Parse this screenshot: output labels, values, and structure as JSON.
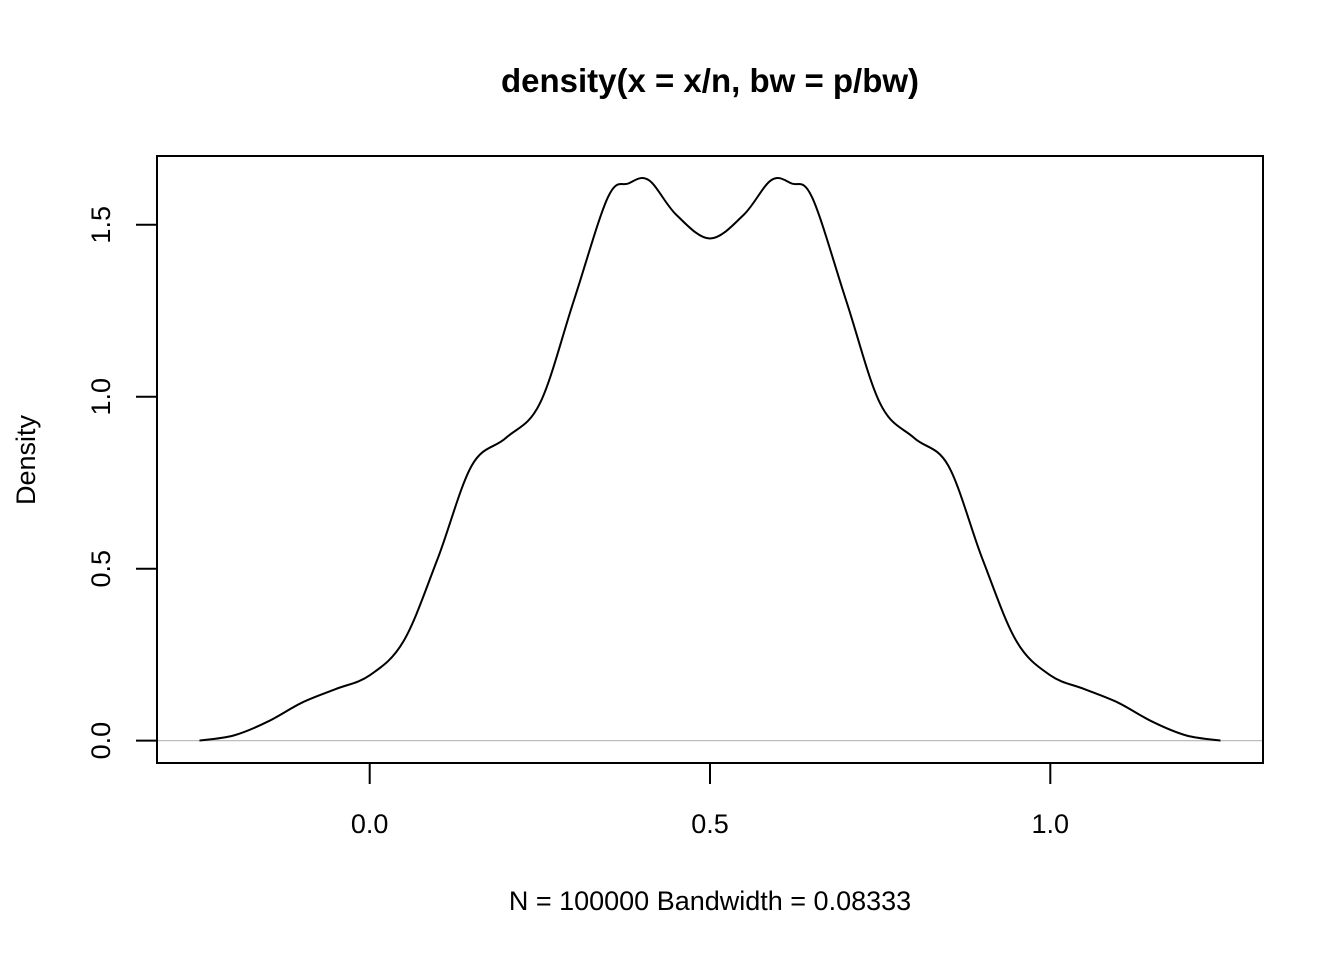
{
  "chart_data": {
    "type": "line",
    "title": "density(x = x/n, bw = p/bw)",
    "xlabel": "N = 100000   Bandwidth = 0.08333",
    "ylabel": "Density",
    "xlim": [
      -0.3125,
      1.3125
    ],
    "ylim": [
      -0.065,
      1.7
    ],
    "x_ticks": [
      0.0,
      0.5,
      1.0
    ],
    "x_tick_labels": [
      "0.0",
      "0.5",
      "1.0"
    ],
    "y_ticks": [
      0.0,
      0.5,
      1.0,
      1.5
    ],
    "y_tick_labels": [
      "0.0",
      "0.5",
      "1.0",
      "1.5"
    ],
    "baseline": 0,
    "grid": false,
    "series": [
      {
        "x": [
          -0.25,
          -0.2,
          -0.15,
          -0.1,
          -0.05,
          0.0,
          0.05,
          0.1,
          0.15,
          0.2,
          0.25,
          0.3,
          0.35,
          0.38,
          0.41,
          0.45,
          0.5,
          0.55,
          0.59,
          0.62,
          0.65,
          0.7,
          0.75,
          0.8,
          0.85,
          0.9,
          0.95,
          1.0,
          1.05,
          1.1,
          1.15,
          1.2,
          1.25
        ],
        "y": [
          0.0,
          0.015,
          0.055,
          0.11,
          0.15,
          0.19,
          0.29,
          0.53,
          0.8,
          0.88,
          0.98,
          1.28,
          1.58,
          1.62,
          1.63,
          1.53,
          1.46,
          1.53,
          1.63,
          1.62,
          1.58,
          1.28,
          0.98,
          0.88,
          0.8,
          0.53,
          0.29,
          0.19,
          0.15,
          0.11,
          0.055,
          0.015,
          0.0
        ]
      }
    ]
  }
}
